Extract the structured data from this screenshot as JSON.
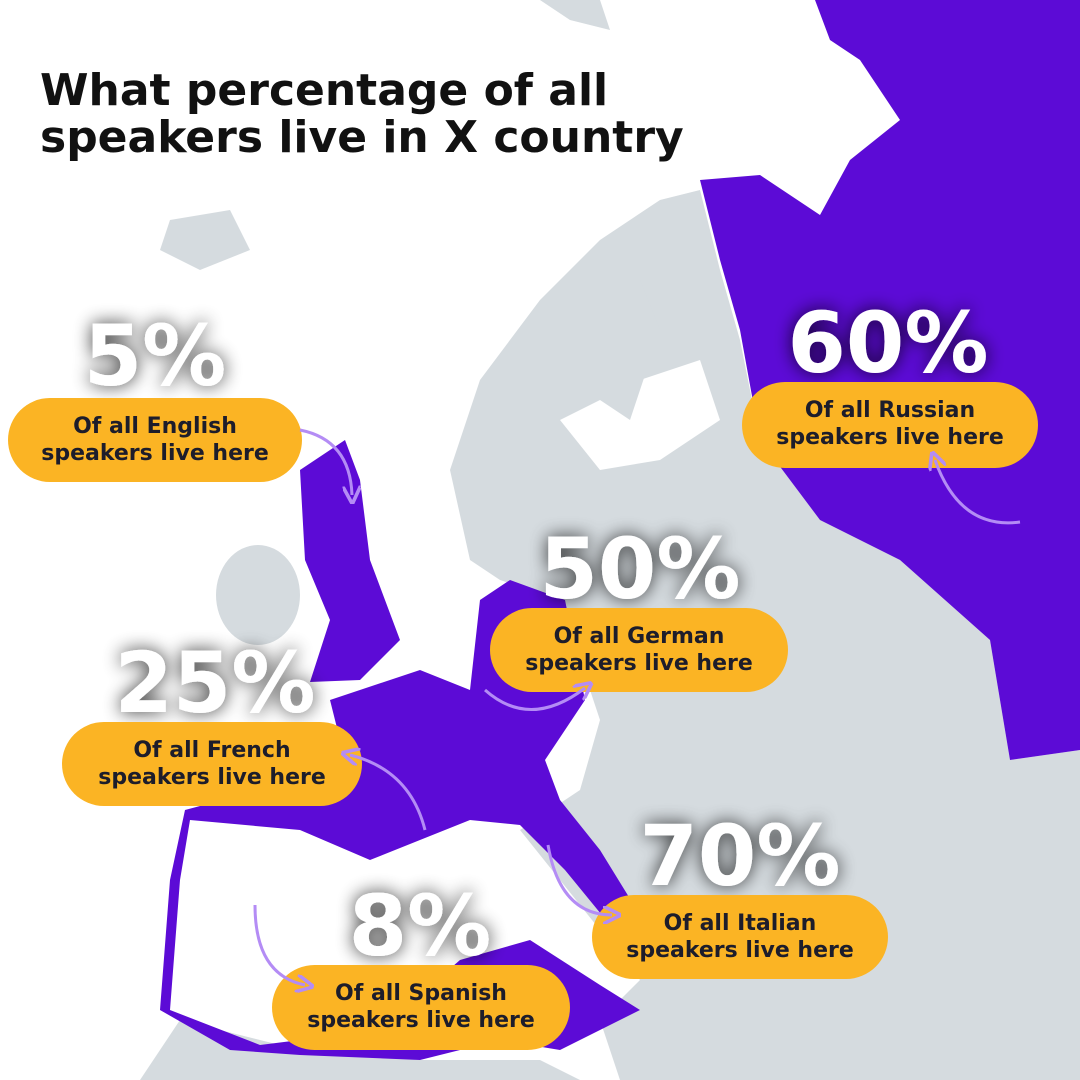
{
  "title": [
    "What percentage of all",
    "speakers live in X country"
  ],
  "callouts": [
    {
      "percent": "5%",
      "lines": [
        "Of all English",
        "speakers live here"
      ]
    },
    {
      "percent": "60%",
      "lines": [
        "Of all Russian",
        "speakers live here"
      ]
    },
    {
      "percent": "50%",
      "lines": [
        "Of all German",
        "speakers live here"
      ]
    },
    {
      "percent": "25%",
      "lines": [
        "Of all French",
        "speakers live here"
      ]
    },
    {
      "percent": "70%",
      "lines": [
        "Of all Italian",
        "speakers live here"
      ]
    },
    {
      "percent": "8%",
      "lines": [
        "Of all Spanish",
        "speakers live here"
      ]
    }
  ]
}
